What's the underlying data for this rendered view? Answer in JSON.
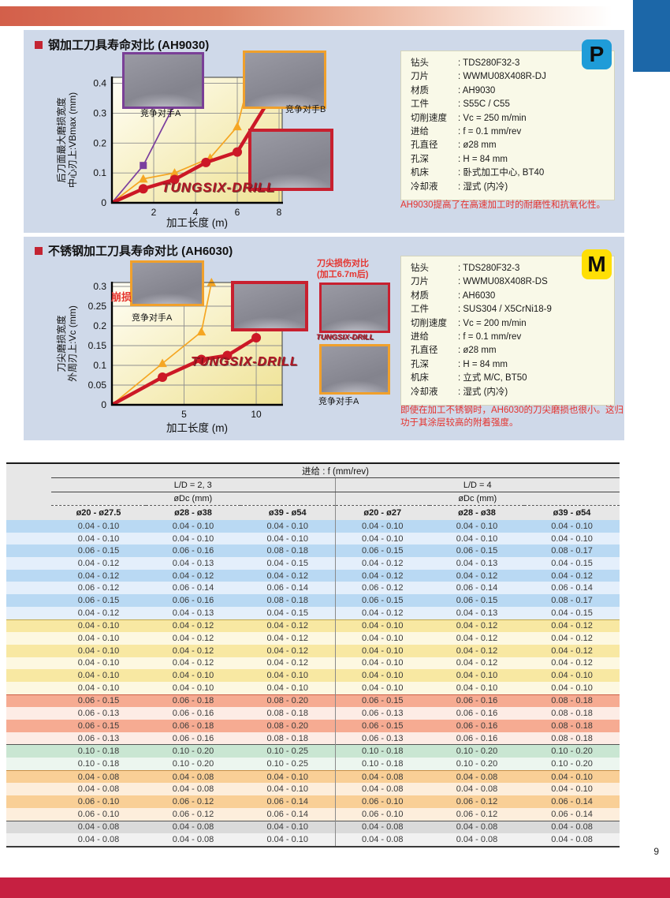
{
  "page": {
    "number": "9"
  },
  "colors": {
    "panel_bg": "#cfd9e9",
    "topbar_red": "#d35f4a",
    "corner_blue": "#1c67a8",
    "bottom_bar": "#c62041",
    "brand_red": "#b01523",
    "note_red": "#e5332d",
    "badge_p_bg": "#1f9cd8",
    "badge_m_bg": "#ffdf05"
  },
  "panel1": {
    "title": "钢加工刀具寿命对比 (AH9030)",
    "badge": "P",
    "logo": "TUNGSIX-DRILL",
    "specs": [
      {
        "label": "钻头",
        "value": ": TDS280F32-3"
      },
      {
        "label": "刀片",
        "value": ": WWMU08X408R-DJ"
      },
      {
        "label": "材质",
        "value": ": AH9030"
      },
      {
        "label": "工件",
        "value": ": S55C / C55"
      },
      {
        "label": "切削速度",
        "value": ": Vc = 250 m/min"
      },
      {
        "label": "进给",
        "value": ": f = 0.1 mm/rev"
      },
      {
        "label": "孔直径",
        "value": ": ø28 mm"
      },
      {
        "label": "孔深",
        "value": ": H = 84 mm"
      },
      {
        "label": "机床",
        "value": ": 卧式加工中心, BT40"
      },
      {
        "label": "冷却液",
        "value": ": 湿式 (内冷)"
      }
    ],
    "note": "AH9030提高了在高速加工时的耐磨性和抗氧化性。"
  },
  "panel2": {
    "title": "不锈钢加工刀具寿命对比 (AH6030)",
    "badge": "M",
    "logo": "TUNGSIX-DRILL",
    "chipping_label": "崩损",
    "competitor_label": "竞争对手A",
    "damage_compare": {
      "title": "刀尖损伤对比",
      "subtitle": "(加工6.7m后)",
      "logo": "TUNGSIX-DRILL",
      "competitor_label": "竞争对手A"
    },
    "specs": [
      {
        "label": "钻头",
        "value": ": TDS280F32-3"
      },
      {
        "label": "刀片",
        "value": ": WWMU08X408R-DS"
      },
      {
        "label": "材质",
        "value": ": AH6030"
      },
      {
        "label": "工件",
        "value": ": SUS304 / X5CrNi18-9"
      },
      {
        "label": "切削速度",
        "value": ": Vc = 200 m/min"
      },
      {
        "label": "进给",
        "value": ": f = 0.1 mm/rev"
      },
      {
        "label": "孔直径",
        "value": ": ø28 mm"
      },
      {
        "label": "孔深",
        "value": ": H = 84 mm"
      },
      {
        "label": "机床",
        "value": ": 立式 M/C, BT50"
      },
      {
        "label": "冷却液",
        "value": ": 湿式 (内冷)"
      }
    ],
    "note": "即使在加工不锈钢时，AH6030的刀尖磨损也很小。这归功于其涂层较高的附着强度。"
  },
  "chart_data": [
    {
      "type": "line",
      "title": "钢加工刀具寿命对比 (AH9030)",
      "xlabel": "加工长度 (m)",
      "ylabel": "后刀面最大磨损宽度\n中心刃上:VBmax (mm)",
      "xlim": [
        0,
        8.15
      ],
      "ylim": [
        0,
        0.42
      ],
      "xticks": [
        2,
        4,
        6,
        8
      ],
      "yticks": [
        0,
        0.1,
        0.2,
        0.3,
        0.4
      ],
      "grid": true,
      "series": [
        {
          "name": "竞争对手A",
          "color": "#7b3f9e",
          "marker": "square",
          "x": [
            0,
            1.5,
            3
          ],
          "y": [
            0,
            0.125,
            0.33
          ]
        },
        {
          "name": "竞争对手B",
          "color": "#f5a623",
          "marker": "triangle",
          "x": [
            0,
            1.5,
            3,
            4.7,
            6,
            6.6
          ],
          "y": [
            0,
            0.08,
            0.1,
            0.15,
            0.255,
            0.42
          ]
        },
        {
          "name": "TUNGSIX-DRILL",
          "color": "#cc1826",
          "marker": "circle",
          "x": [
            0,
            1.5,
            3,
            4.5,
            6,
            7.4
          ],
          "y": [
            0,
            0.047,
            0.078,
            0.135,
            0.17,
            0.33
          ]
        }
      ]
    },
    {
      "type": "line",
      "title": "不锈钢加工刀具寿命对比 (AH6030)",
      "xlabel": "加工长度 (m)",
      "ylabel": "刀尖磨损宽度\n外周刃上:Vc (mm)",
      "xlim": [
        0,
        11.8
      ],
      "ylim": [
        0,
        0.31
      ],
      "xticks": [
        5,
        10
      ],
      "yticks": [
        0,
        0.05,
        0.1,
        0.15,
        0.2,
        0.25,
        0.3
      ],
      "grid": true,
      "series": [
        {
          "name": "竞争对手A",
          "color": "#f5a623",
          "marker": "triangle",
          "x": [
            0,
            3.5,
            6.2,
            6.9
          ],
          "y": [
            0,
            0.105,
            0.185,
            0.31
          ]
        },
        {
          "name": "TUNGSIX-DRILL",
          "color": "#cc1826",
          "marker": "circle",
          "x": [
            0,
            3.5,
            6.2,
            8,
            10
          ],
          "y": [
            0,
            0.07,
            0.115,
            0.125,
            0.17
          ]
        }
      ]
    }
  ],
  "table": {
    "feed_header": "进给 : f (mm/rev)",
    "groups": [
      {
        "label": "L/D = 2, 3",
        "dc_label": "øDc (mm)",
        "cols": [
          "ø20 - ø27.5",
          "ø28 - ø38",
          "ø39 - ø54"
        ]
      },
      {
        "label": "L/D = 4",
        "dc_label": "øDc (mm)",
        "cols": [
          "ø20 - ø27",
          "ø28 - ø38",
          "ø39 - ø54"
        ]
      }
    ],
    "sections": [
      {
        "name": "blue",
        "shades": [
          "#b9d9f3",
          "#e4effb"
        ],
        "border": "#7d9cc2",
        "rows": [
          [
            "0.04 - 0.10",
            "0.04 - 0.10",
            "0.04 - 0.10",
            "0.04 - 0.10",
            "0.04 - 0.10",
            "0.04 - 0.10"
          ],
          [
            "0.04 - 0.10",
            "0.04 - 0.10",
            "0.04 - 0.10",
            "0.04 - 0.10",
            "0.04 - 0.10",
            "0.04 - 0.10"
          ],
          [
            "0.06 - 0.15",
            "0.06 - 0.16",
            "0.08 - 0.18",
            "0.06 - 0.15",
            "0.06 - 0.15",
            "0.08 - 0.17"
          ],
          [
            "0.04 - 0.12",
            "0.04 - 0.13",
            "0.04 - 0.15",
            "0.04 - 0.12",
            "0.04 - 0.13",
            "0.04 - 0.15"
          ],
          [
            "0.04 - 0.12",
            "0.04 - 0.12",
            "0.04 - 0.12",
            "0.04 - 0.12",
            "0.04 - 0.12",
            "0.04 - 0.12"
          ],
          [
            "0.06 - 0.12",
            "0.06 - 0.14",
            "0.06 - 0.14",
            "0.06 - 0.12",
            "0.06 - 0.14",
            "0.06 - 0.14"
          ],
          [
            "0.06 - 0.15",
            "0.06 - 0.16",
            "0.08 - 0.18",
            "0.06 - 0.15",
            "0.06 - 0.15",
            "0.08 - 0.17"
          ],
          [
            "0.04 - 0.12",
            "0.04 - 0.13",
            "0.04 - 0.15",
            "0.04 - 0.12",
            "0.04 - 0.13",
            "0.04 - 0.15"
          ]
        ]
      },
      {
        "name": "yellow",
        "shades": [
          "#f8e8a2",
          "#fdf8e1"
        ],
        "border": "#c2a94e",
        "rows": [
          [
            "0.04 - 0.10",
            "0.04 - 0.12",
            "0.04 - 0.12",
            "0.04 - 0.10",
            "0.04 - 0.12",
            "0.04 - 0.12"
          ],
          [
            "0.04 - 0.10",
            "0.04 - 0.12",
            "0.04 - 0.12",
            "0.04 - 0.10",
            "0.04 - 0.12",
            "0.04 - 0.12"
          ],
          [
            "0.04 - 0.10",
            "0.04 - 0.12",
            "0.04 - 0.12",
            "0.04 - 0.10",
            "0.04 - 0.12",
            "0.04 - 0.12"
          ],
          [
            "0.04 - 0.10",
            "0.04 - 0.12",
            "0.04 - 0.12",
            "0.04 - 0.10",
            "0.04 - 0.12",
            "0.04 - 0.12"
          ],
          [
            "0.04 - 0.10",
            "0.04 - 0.10",
            "0.04 - 0.10",
            "0.04 - 0.10",
            "0.04 - 0.10",
            "0.04 - 0.10"
          ],
          [
            "0.04 - 0.10",
            "0.04 - 0.10",
            "0.04 - 0.10",
            "0.04 - 0.10",
            "0.04 - 0.10",
            "0.04 - 0.10"
          ]
        ]
      },
      {
        "name": "salmon",
        "shades": [
          "#f6ab92",
          "#fdece5"
        ],
        "border": "#cc6048",
        "rows": [
          [
            "0.06 - 0.15",
            "0.06 - 0.18",
            "0.08 - 0.20",
            "0.06 - 0.15",
            "0.06 - 0.16",
            "0.08 - 0.18"
          ],
          [
            "0.06 - 0.13",
            "0.06 - 0.16",
            "0.08 - 0.18",
            "0.06 - 0.13",
            "0.06 - 0.16",
            "0.08 - 0.18"
          ],
          [
            "0.06 - 0.15",
            "0.06 - 0.18",
            "0.08 - 0.20",
            "0.06 - 0.15",
            "0.06 - 0.16",
            "0.08 - 0.18"
          ],
          [
            "0.06 - 0.13",
            "0.06 - 0.16",
            "0.08 - 0.18",
            "0.06 - 0.13",
            "0.06 - 0.16",
            "0.08 - 0.18"
          ]
        ]
      },
      {
        "name": "green",
        "shades": [
          "#c9e6d2",
          "#ecf6ef"
        ],
        "border": "#555555",
        "rows": [
          [
            "0.10 - 0.18",
            "0.10 - 0.20",
            "0.10 - 0.25",
            "0.10 - 0.18",
            "0.10 - 0.20",
            "0.10 - 0.20"
          ],
          [
            "0.10 - 0.18",
            "0.10 - 0.20",
            "0.10 - 0.25",
            "0.10 - 0.18",
            "0.10 - 0.20",
            "0.10 - 0.20"
          ]
        ]
      },
      {
        "name": "orange",
        "shades": [
          "#f9cf96",
          "#fdeedc"
        ],
        "border": "#c99045",
        "rows": [
          [
            "0.04 - 0.08",
            "0.04 - 0.08",
            "0.04 - 0.10",
            "0.04 - 0.08",
            "0.04 - 0.08",
            "0.04 - 0.10"
          ],
          [
            "0.04 - 0.08",
            "0.04 - 0.08",
            "0.04 - 0.10",
            "0.04 - 0.08",
            "0.04 - 0.08",
            "0.04 - 0.10"
          ],
          [
            "0.06 - 0.10",
            "0.06 - 0.12",
            "0.06 - 0.14",
            "0.06 - 0.10",
            "0.06 - 0.12",
            "0.06 - 0.14"
          ],
          [
            "0.06 - 0.10",
            "0.06 - 0.12",
            "0.06 - 0.14",
            "0.06 - 0.10",
            "0.06 - 0.12",
            "0.06 - 0.14"
          ]
        ]
      },
      {
        "name": "gray",
        "shades": [
          "#dadada",
          "#f1f1f1"
        ],
        "border": "#555555",
        "rows": [
          [
            "0.04 - 0.08",
            "0.04 - 0.08",
            "0.04 - 0.10",
            "0.04 - 0.08",
            "0.04 - 0.08",
            "0.04 - 0.08"
          ],
          [
            "0.04 - 0.08",
            "0.04 - 0.08",
            "0.04 - 0.10",
            "0.04 - 0.08",
            "0.04 - 0.08",
            "0.04 - 0.08"
          ]
        ]
      }
    ]
  }
}
